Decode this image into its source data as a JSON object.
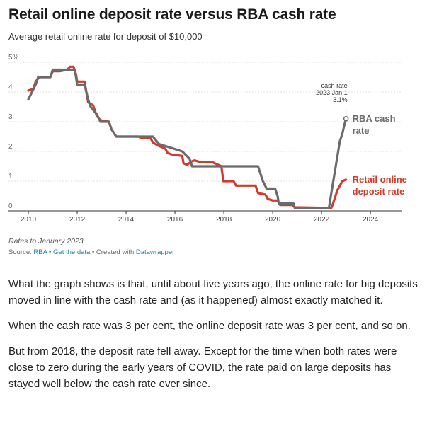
{
  "title": "Retail online deposit rate versus RBA cash rate",
  "subtitle": "Average retail online rate for deposit of $10,000",
  "notes": "Rates to January 2023",
  "source": {
    "prefix": "Source: ",
    "source_link": "RBA",
    "sep1": " • ",
    "data_link": "Get the data",
    "sep2": " • Created with ",
    "tool_link": "Datawrapper"
  },
  "article": [
    "What the graph shows is that, until about five years ago, the online rate for big deposits moved in line with the cash rate and (as it happened) almost exactly matched it.",
    "When the cash rate was 3 per cent, the online deposit rate was 3 per cent, and so on.",
    "But from 2018, the deposit rate fell away. Except for the time when both rates were close to zero during the early years of COVID, the rate paid on large deposits has stayed well below the cash rate ever since."
  ],
  "chart_data": {
    "type": "line",
    "x_ticks": [
      "2010",
      "2012",
      "2014",
      "2016",
      "2018",
      "2020",
      "2022",
      "2024"
    ],
    "y_ticks": [
      "0",
      "1",
      "2",
      "3",
      "4",
      "5%"
    ],
    "xlim": [
      2010,
      2025.3
    ],
    "ylim": [
      0,
      5
    ],
    "grid": true,
    "annotation": {
      "lines": [
        "cash rate",
        "2023 Jan 1",
        "3.1%"
      ],
      "x": 2023.0,
      "y": 3.1
    },
    "series": [
      {
        "name": "RBA cash rate",
        "label_lines": [
          "RBA cash",
          "rate"
        ],
        "color": "#6b6b6b",
        "points": [
          [
            2010.0,
            3.75
          ],
          [
            2010.15,
            4.0
          ],
          [
            2010.3,
            4.25
          ],
          [
            2010.4,
            4.5
          ],
          [
            2010.9,
            4.5
          ],
          [
            2011.0,
            4.75
          ],
          [
            2011.9,
            4.75
          ],
          [
            2011.95,
            4.5
          ],
          [
            2012.0,
            4.25
          ],
          [
            2012.3,
            4.25
          ],
          [
            2012.45,
            3.75
          ],
          [
            2012.55,
            3.5
          ],
          [
            2012.8,
            3.25
          ],
          [
            2012.95,
            3.0
          ],
          [
            2013.3,
            3.0
          ],
          [
            2013.4,
            2.75
          ],
          [
            2013.6,
            2.5
          ],
          [
            2015.1,
            2.5
          ],
          [
            2015.35,
            2.25
          ],
          [
            2016.3,
            2.0
          ],
          [
            2016.6,
            1.75
          ],
          [
            2016.7,
            1.5
          ],
          [
            2019.4,
            1.5
          ],
          [
            2019.5,
            1.25
          ],
          [
            2019.6,
            1.0
          ],
          [
            2019.75,
            0.75
          ],
          [
            2020.1,
            0.75
          ],
          [
            2020.2,
            0.5
          ],
          [
            2020.25,
            0.25
          ],
          [
            2020.85,
            0.25
          ],
          [
            2020.9,
            0.1
          ],
          [
            2022.3,
            0.1
          ],
          [
            2022.35,
            0.35
          ],
          [
            2022.45,
            0.85
          ],
          [
            2022.55,
            1.35
          ],
          [
            2022.65,
            1.85
          ],
          [
            2022.75,
            2.35
          ],
          [
            2022.85,
            2.6
          ],
          [
            2022.92,
            2.85
          ],
          [
            2023.0,
            3.1
          ]
        ]
      },
      {
        "name": "Retail online deposit rate",
        "label_lines": [
          "Retail online",
          "deposit rate"
        ],
        "color": "#d33a2c",
        "points": [
          [
            2010.0,
            4.05
          ],
          [
            2010.2,
            4.1
          ],
          [
            2010.3,
            4.35
          ],
          [
            2010.45,
            4.5
          ],
          [
            2010.9,
            4.5
          ],
          [
            2011.0,
            4.7
          ],
          [
            2011.3,
            4.7
          ],
          [
            2011.6,
            4.75
          ],
          [
            2011.7,
            4.85
          ],
          [
            2011.85,
            4.85
          ],
          [
            2011.95,
            4.6
          ],
          [
            2012.0,
            4.35
          ],
          [
            2012.3,
            4.35
          ],
          [
            2012.45,
            3.65
          ],
          [
            2012.65,
            3.55
          ],
          [
            2012.8,
            3.2
          ],
          [
            2012.95,
            3.05
          ],
          [
            2013.3,
            3.0
          ],
          [
            2013.4,
            2.75
          ],
          [
            2013.6,
            2.5
          ],
          [
            2014.5,
            2.5
          ],
          [
            2014.65,
            2.45
          ],
          [
            2015.0,
            2.45
          ],
          [
            2015.1,
            2.3
          ],
          [
            2015.3,
            2.2
          ],
          [
            2015.6,
            2.1
          ],
          [
            2015.7,
            1.95
          ],
          [
            2015.85,
            1.9
          ],
          [
            2016.3,
            1.85
          ],
          [
            2016.35,
            1.6
          ],
          [
            2016.5,
            1.55
          ],
          [
            2016.65,
            1.65
          ],
          [
            2016.8,
            1.7
          ],
          [
            2017.0,
            1.65
          ],
          [
            2017.5,
            1.65
          ],
          [
            2017.9,
            1.5
          ],
          [
            2017.98,
            1.0
          ],
          [
            2018.4,
            1.0
          ],
          [
            2018.5,
            0.85
          ],
          [
            2019.3,
            0.85
          ],
          [
            2019.4,
            0.6
          ],
          [
            2019.7,
            0.55
          ],
          [
            2019.8,
            0.4
          ],
          [
            2020.0,
            0.35
          ],
          [
            2020.2,
            0.35
          ],
          [
            2020.3,
            0.2
          ],
          [
            2020.8,
            0.2
          ],
          [
            2020.9,
            0.12
          ],
          [
            2022.4,
            0.1
          ],
          [
            2022.45,
            0.2
          ],
          [
            2022.55,
            0.45
          ],
          [
            2022.65,
            0.7
          ],
          [
            2022.75,
            0.85
          ],
          [
            2022.85,
            1.0
          ],
          [
            2023.0,
            1.05
          ]
        ]
      }
    ]
  }
}
